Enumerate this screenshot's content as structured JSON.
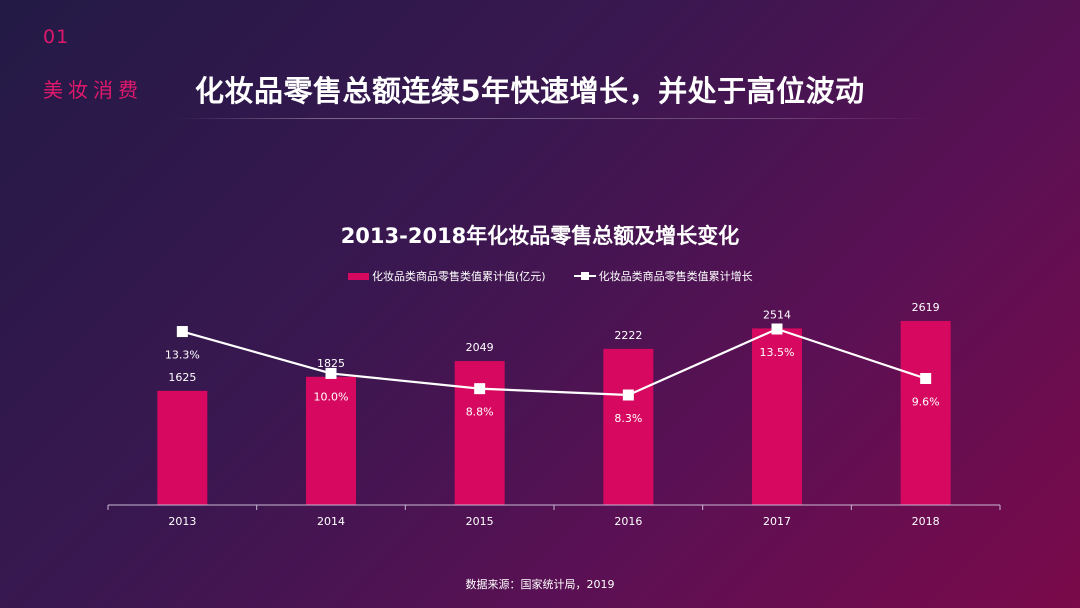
{
  "header": {
    "section_number": "01",
    "section_label": "美妆消费",
    "headline": "化妆品零售总额连续5年快速增长，并处于高位波动"
  },
  "footer": {
    "source": "数据来源：国家统计局，2019"
  },
  "colors": {
    "bar": "#d6085f",
    "line": "#ffffff",
    "accent": "#e0186b"
  },
  "chart_data": {
    "type": "bar",
    "title": "2013-2018年化妆品零售总额及增长变化",
    "categories": [
      "2013",
      "2014",
      "2015",
      "2016",
      "2017",
      "2018"
    ],
    "series": [
      {
        "name": "化妆品类商品零售类值累计值(亿元)",
        "type": "bar",
        "values": [
          1625,
          1825,
          2049,
          2222,
          2514,
          2619
        ],
        "labels": [
          "1625",
          "1825",
          "2049",
          "2222",
          "2514",
          "2619"
        ]
      },
      {
        "name": "化妆品类商品零售类值累计增长",
        "type": "line",
        "values": [
          13.3,
          10.0,
          8.8,
          8.3,
          13.5,
          9.6
        ],
        "labels": [
          "13.3%",
          "10.0%",
          "8.8%",
          "8.3%",
          "13.5%",
          "9.6%"
        ]
      }
    ],
    "legend": "top-center",
    "grid": false
  }
}
